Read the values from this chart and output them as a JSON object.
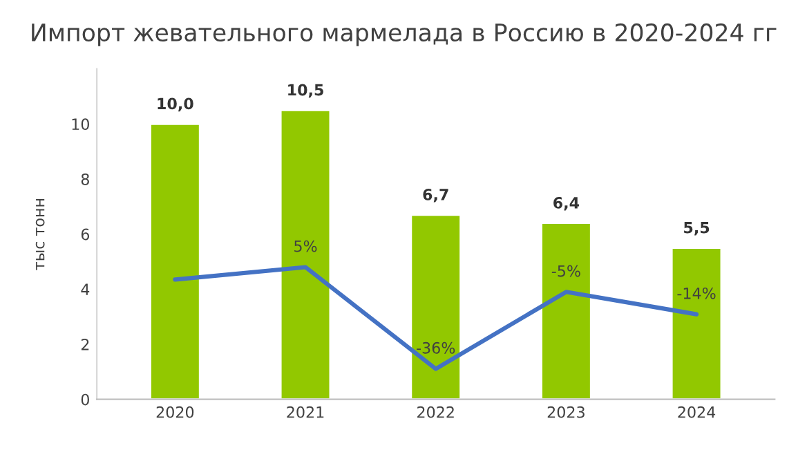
{
  "chart_data": {
    "type": "bar",
    "title": "Импорт жевательного мармелада в Россию в 2020-2024 гг",
    "ylabel": "тыс тонн",
    "categories": [
      "2020",
      "2021",
      "2022",
      "2023",
      "2024"
    ],
    "series": [
      {
        "color": "#92c800",
        "values": [
          10.0,
          10.5,
          6.7,
          6.4,
          5.5
        ],
        "value_labels": [
          "10,0",
          "10,5",
          "6,7",
          "6,4",
          "5,5"
        ]
      },
      {
        "type": "line",
        "axis": "y2",
        "color": "#4472c4",
        "values": [
          0,
          5,
          -36,
          -5,
          -14
        ],
        "value_labels": [
          null,
          "5%",
          "-36%",
          "-5%",
          "-14%"
        ]
      }
    ],
    "ylim": [
      0,
      12
    ],
    "yticks": [
      0,
      2,
      4,
      6,
      8,
      10
    ],
    "grid": false,
    "legend": false
  }
}
